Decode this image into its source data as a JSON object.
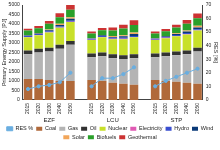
{
  "chart_data": {
    "type": "bar",
    "stacked": true,
    "categories": [
      "2015",
      "2020",
      "2030",
      "2040",
      "2050",
      null,
      "2015",
      "2020",
      "2030",
      "2040",
      "2050",
      null,
      "2015",
      "2020",
      "2030",
      "2040",
      "2050"
    ],
    "groups": [
      "EZF",
      "LCU",
      "STP"
    ],
    "y_label": "Primary Energy Supply [PJ]",
    "y2_label": "RES [%]",
    "ylim": [
      0,
      5000
    ],
    "yticks": [
      0,
      500,
      1000,
      1500,
      2000,
      2500,
      3000,
      3500,
      4000,
      4500,
      5000
    ],
    "y2lim": [
      0,
      70
    ],
    "y2ticks": [
      0,
      10,
      20,
      30,
      40,
      50,
      60,
      70
    ],
    "legend": "bottom",
    "grid": false,
    "series": [
      {
        "name": "Coal",
        "color": "#b0693a",
        "values": [
          1100,
          1100,
          1050,
          1000,
          1000,
          null,
          1050,
          1000,
          900,
          850,
          800,
          null,
          1050,
          1000,
          950,
          900,
          850
        ]
      },
      {
        "name": "Gas",
        "color": "#b4b4b4",
        "values": [
          1300,
          1400,
          1500,
          1700,
          1900,
          null,
          1200,
          1300,
          1300,
          1300,
          1400,
          null,
          1200,
          1300,
          1400,
          1500,
          1700
        ]
      },
      {
        "name": "Oil",
        "color": "#333333",
        "values": [
          200,
          200,
          200,
          200,
          200,
          null,
          200,
          200,
          200,
          200,
          200,
          null,
          200,
          200,
          200,
          200,
          200
        ]
      },
      {
        "name": "Nuclear",
        "color": "#c8e02a",
        "values": [
          700,
          700,
          800,
          900,
          1000,
          null,
          700,
          800,
          800,
          850,
          900,
          null,
          700,
          750,
          800,
          850,
          900
        ]
      },
      {
        "name": "Electricity",
        "color": "#e05ab4",
        "values": [
          20,
          20,
          20,
          20,
          20,
          null,
          20,
          20,
          20,
          20,
          20,
          null,
          20,
          20,
          20,
          20,
          20
        ]
      },
      {
        "name": "Hydro",
        "color": "#3a4fd0",
        "values": [
          50,
          50,
          50,
          50,
          50,
          null,
          50,
          50,
          50,
          50,
          50,
          null,
          50,
          50,
          50,
          50,
          50
        ]
      },
      {
        "name": "Wind",
        "color": "#0a3a78",
        "values": [
          20,
          30,
          50,
          80,
          100,
          null,
          20,
          30,
          50,
          80,
          100,
          null,
          20,
          30,
          50,
          80,
          100
        ]
      },
      {
        "name": "Solar",
        "color": "#f2a65a",
        "values": [
          10,
          20,
          40,
          60,
          80,
          null,
          10,
          20,
          40,
          60,
          80,
          null,
          10,
          20,
          40,
          60,
          80
        ]
      },
      {
        "name": "Biofuels",
        "color": "#2aa02a",
        "values": [
          250,
          250,
          300,
          350,
          400,
          null,
          250,
          250,
          300,
          350,
          400,
          null,
          250,
          250,
          300,
          350,
          400
        ]
      },
      {
        "name": "Geothermal",
        "color": "#cc3333",
        "values": [
          100,
          120,
          150,
          200,
          250,
          null,
          100,
          120,
          150,
          200,
          250,
          null,
          100,
          120,
          150,
          200,
          250
        ]
      },
      {
        "name": "RES %",
        "type": "line",
        "axis": "y2",
        "color": "#6aaee0",
        "marker": "circle",
        "line_style": "solid",
        "values": [
          8,
          10,
          11,
          13,
          20,
          null,
          10,
          16,
          16,
          19,
          24,
          null,
          10,
          14,
          17,
          20,
          23
        ]
      }
    ]
  }
}
